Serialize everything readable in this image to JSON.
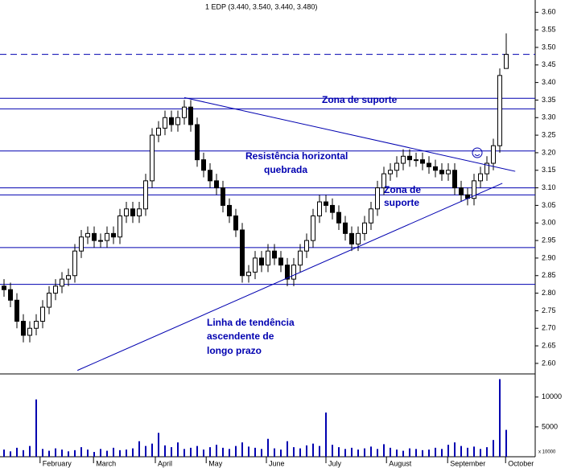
{
  "chart_data": {
    "type": "candlestick",
    "title": "1 EDP (3.440, 3.540, 3.440, 3.480)",
    "open": [
      2.82,
      2.81,
      2.78,
      2.72,
      2.68,
      2.7,
      2.72,
      2.76,
      2.8,
      2.82,
      2.84,
      2.85,
      2.92,
      2.96,
      2.97,
      2.95,
      2.95,
      2.97,
      2.96,
      3.02,
      3.04,
      3.02,
      3.04,
      3.12,
      3.25,
      3.27,
      3.3,
      3.28,
      3.3,
      3.33,
      3.28,
      3.18,
      3.15,
      3.12,
      3.1,
      3.05,
      3.02,
      2.98,
      2.85,
      2.86,
      2.9,
      2.88,
      2.92,
      2.9,
      2.88,
      2.84,
      2.88,
      2.92,
      2.95,
      3.02,
      3.06,
      3.05,
      3.03,
      3.0,
      2.97,
      2.94,
      2.97,
      3.0,
      3.04,
      3.1,
      3.14,
      3.15,
      3.17,
      3.19,
      3.18,
      3.18,
      3.17,
      3.16,
      3.15,
      3.14,
      3.15,
      3.1,
      3.08,
      3.07,
      3.12,
      3.14,
      3.17,
      3.22,
      3.44
    ],
    "high": [
      2.84,
      2.83,
      2.8,
      2.74,
      2.72,
      2.74,
      2.78,
      2.82,
      2.84,
      2.86,
      2.87,
      2.94,
      2.98,
      2.99,
      2.99,
      2.97,
      2.99,
      2.99,
      3.04,
      3.06,
      3.06,
      3.06,
      3.14,
      3.27,
      3.29,
      3.32,
      3.32,
      3.32,
      3.35,
      3.35,
      3.3,
      3.2,
      3.17,
      3.14,
      3.12,
      3.07,
      3.04,
      3.0,
      2.88,
      2.92,
      2.92,
      2.94,
      2.94,
      2.92,
      2.9,
      2.9,
      2.94,
      2.97,
      3.04,
      3.08,
      3.08,
      3.07,
      3.05,
      3.02,
      2.99,
      2.99,
      3.02,
      3.06,
      3.12,
      3.16,
      3.17,
      3.19,
      3.21,
      3.21,
      3.2,
      3.2,
      3.19,
      3.18,
      3.17,
      3.17,
      3.17,
      3.12,
      3.1,
      3.14,
      3.16,
      3.19,
      3.24,
      3.44,
      3.54
    ],
    "low": [
      2.79,
      2.76,
      2.7,
      2.66,
      2.66,
      2.68,
      2.7,
      2.74,
      2.78,
      2.8,
      2.82,
      2.83,
      2.9,
      2.94,
      2.93,
      2.93,
      2.93,
      2.94,
      2.94,
      3.0,
      3.0,
      3.0,
      3.02,
      3.1,
      3.23,
      3.25,
      3.26,
      3.26,
      3.28,
      3.26,
      3.16,
      3.13,
      3.1,
      3.08,
      3.03,
      3.0,
      2.96,
      2.83,
      2.83,
      2.84,
      2.86,
      2.86,
      2.88,
      2.86,
      2.82,
      2.82,
      2.86,
      2.9,
      2.93,
      3.0,
      3.03,
      3.01,
      2.98,
      2.95,
      2.92,
      2.92,
      2.95,
      2.98,
      3.02,
      3.08,
      3.12,
      3.13,
      3.15,
      3.16,
      3.16,
      3.15,
      3.14,
      3.13,
      3.12,
      3.12,
      3.08,
      3.06,
      3.05,
      3.05,
      3.1,
      3.12,
      3.15,
      3.2,
      3.44
    ],
    "close": [
      2.81,
      2.78,
      2.72,
      2.68,
      2.7,
      2.72,
      2.76,
      2.8,
      2.82,
      2.84,
      2.85,
      2.92,
      2.96,
      2.97,
      2.95,
      2.95,
      2.97,
      2.96,
      3.02,
      3.04,
      3.02,
      3.04,
      3.12,
      3.25,
      3.27,
      3.3,
      3.28,
      3.3,
      3.33,
      3.28,
      3.18,
      3.15,
      3.12,
      3.1,
      3.05,
      3.02,
      2.98,
      2.85,
      2.86,
      2.9,
      2.88,
      2.92,
      2.9,
      2.88,
      2.84,
      2.88,
      2.92,
      2.95,
      3.02,
      3.06,
      3.05,
      3.03,
      3.0,
      2.97,
      2.94,
      2.97,
      3.0,
      3.04,
      3.1,
      3.14,
      3.15,
      3.17,
      3.19,
      3.18,
      3.18,
      3.17,
      3.16,
      3.15,
      3.14,
      3.15,
      3.1,
      3.08,
      3.07,
      3.12,
      3.14,
      3.17,
      3.22,
      3.42,
      3.48
    ],
    "volume": [
      1200,
      900,
      1500,
      1100,
      1800,
      9600,
      1300,
      1000,
      1400,
      1200,
      900,
      1100,
      1600,
      1200,
      800,
      1300,
      1000,
      1500,
      1100,
      1200,
      1400,
      2600,
      1800,
      2200,
      4000,
      1900,
      1600,
      2400,
      1300,
      1500,
      1800,
      1200,
      1600,
      2000,
      1500,
      1300,
      1800,
      2400,
      1700,
      1500,
      1300,
      3000,
      1400,
      1200,
      2600,
      1600,
      1400,
      1900,
      2200,
      1800,
      7400,
      2000,
      1600,
      1300,
      1500,
      1200,
      1400,
      1700,
      1300,
      2100,
      1500,
      1200,
      1000,
      1400,
      1300,
      1100,
      1200,
      1500,
      1300,
      2000,
      2400,
      1800,
      1500,
      1700,
      1300,
      1600,
      2800,
      13000,
      4500
    ],
    "xlim": [
      -0.625,
      82.5
    ],
    "xticks": [
      {
        "value": 5.6,
        "label": "February"
      },
      {
        "value": 13.9,
        "label": "March"
      },
      {
        "value": 23.5,
        "label": "April"
      },
      {
        "value": 31.4,
        "label": "May"
      },
      {
        "value": 40.75,
        "label": "June"
      },
      {
        "value": 50,
        "label": "July"
      },
      {
        "value": 59.4,
        "label": "August"
      },
      {
        "value": 68.9,
        "label": "September"
      },
      {
        "value": 77.9,
        "label": "October"
      }
    ],
    "ylim": [
      2.57,
      3.635
    ],
    "yticks": [
      {
        "value": 3.6,
        "label": "3.60"
      },
      {
        "value": 3.55,
        "label": "3.55"
      },
      {
        "value": 3.5,
        "label": "3.50"
      },
      {
        "value": 3.45,
        "label": "3.45"
      },
      {
        "value": 3.4,
        "label": "3.40"
      },
      {
        "value": 3.35,
        "label": "3.35"
      },
      {
        "value": 3.3,
        "label": "3.30"
      },
      {
        "value": 3.25,
        "label": "3.25"
      },
      {
        "value": 3.2,
        "label": "3.20"
      },
      {
        "value": 3.15,
        "label": "3.15"
      },
      {
        "value": 3.1,
        "label": "3.10"
      },
      {
        "value": 3.05,
        "label": "3.05"
      },
      {
        "value": 3.0,
        "label": "3.00"
      },
      {
        "value": 2.95,
        "label": "2.95"
      },
      {
        "value": 2.9,
        "label": "2.90"
      },
      {
        "value": 2.85,
        "label": "2.85"
      },
      {
        "value": 2.8,
        "label": "2.80"
      },
      {
        "value": 2.75,
        "label": "2.75"
      },
      {
        "value": 2.7,
        "label": "2.70"
      },
      {
        "value": 2.65,
        "label": "2.65"
      },
      {
        "value": 2.6,
        "label": "2.60"
      }
    ],
    "volume_lim": [
      0,
      13200
    ],
    "volume_ticks": [
      5000,
      10000
    ],
    "volume_unit": "x 10000",
    "levels": [
      {
        "value": 3.48,
        "dashed": true
      },
      {
        "value": 3.355
      },
      {
        "value": 3.325
      },
      {
        "value": 3.205
      },
      {
        "value": 3.1
      },
      {
        "value": 3.08
      },
      {
        "value": 2.93
      },
      {
        "value": 2.825
      }
    ],
    "trend_lines": [
      {
        "x": [
          28,
          79.4
        ],
        "y": [
          3.357,
          3.147
        ]
      },
      {
        "x": [
          11.4,
          77.4
        ],
        "y": [
          2.58,
          3.113
        ]
      }
    ],
    "annotations": [
      "Zona de suporte",
      "Resistência horizontal",
      "quebrada",
      "Zona de",
      "suporte",
      "Linha de tendência",
      "ascendente de",
      "longo prazo"
    ],
    "candle_color": "#000000",
    "line_color": "#0000b0",
    "volume_color": "#0000b0"
  }
}
